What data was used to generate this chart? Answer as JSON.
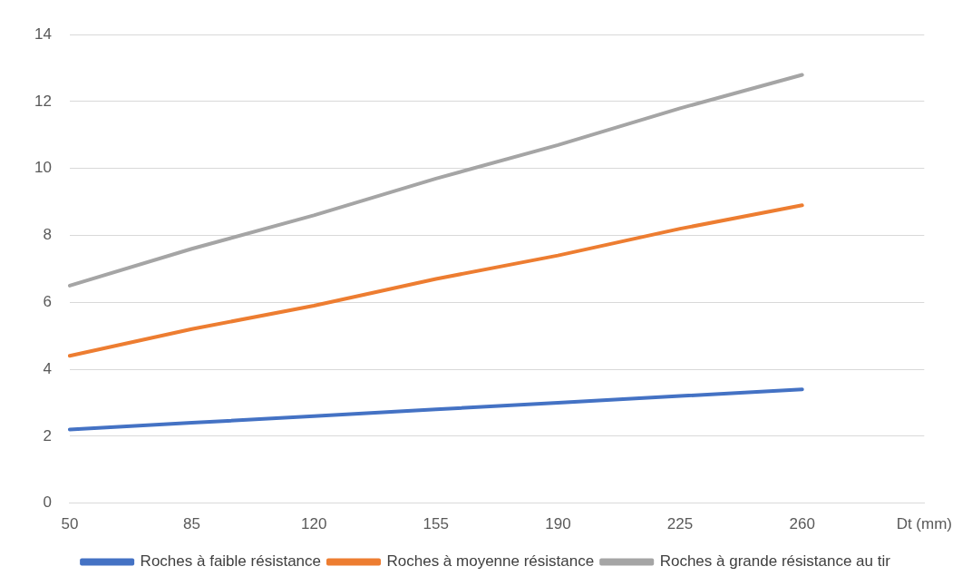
{
  "chart_data": {
    "type": "line",
    "xlabel": "Dt (mm)",
    "categories": [
      "50",
      "85",
      "120",
      "155",
      "190",
      "225",
      "260"
    ],
    "series": [
      {
        "name": "Roches à faible résistance",
        "color": "#4472c4",
        "values": [
          2.2,
          2.4,
          2.6,
          2.8,
          3.0,
          3.2,
          3.4
        ]
      },
      {
        "name": "Roches à moyenne résistance",
        "color": "#ed7d31",
        "values": [
          4.4,
          5.2,
          5.9,
          6.7,
          7.4,
          8.2,
          8.9
        ]
      },
      {
        "name": "Roches à grande résistance au tir",
        "color": "#a5a5a5",
        "values": [
          6.5,
          7.6,
          8.6,
          9.7,
          10.7,
          11.8,
          12.8
        ]
      }
    ],
    "ylim": [
      0,
      14
    ],
    "yticks": [
      0,
      2,
      4,
      6,
      8,
      10,
      12,
      14
    ],
    "grid": "y",
    "legend": "bottom",
    "marker": "none",
    "line_style": "solid"
  }
}
